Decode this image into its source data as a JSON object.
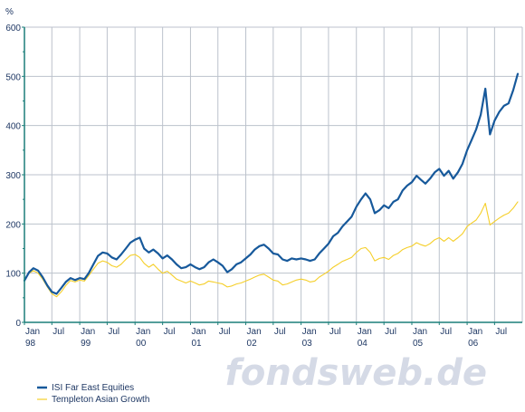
{
  "chart_data": {
    "type": "line",
    "ylabel": "%",
    "ylim": [
      0,
      600
    ],
    "yticks": [
      0,
      100,
      200,
      300,
      400,
      500,
      600
    ],
    "xlim": [
      "1998-01-01",
      "2006-12-31"
    ],
    "xticks": [
      {
        "date": "1998-01-01",
        "label": "Jan",
        "sub": "98"
      },
      {
        "date": "1998-07-01",
        "label": "Jul",
        "sub": ""
      },
      {
        "date": "1999-01-01",
        "label": "Jan",
        "sub": "99"
      },
      {
        "date": "1999-07-01",
        "label": "Jul",
        "sub": ""
      },
      {
        "date": "2000-01-01",
        "label": "Jan",
        "sub": "00"
      },
      {
        "date": "2000-07-01",
        "label": "Jul",
        "sub": ""
      },
      {
        "date": "2001-01-01",
        "label": "Jan",
        "sub": "01"
      },
      {
        "date": "2001-07-01",
        "label": "Jul",
        "sub": ""
      },
      {
        "date": "2002-01-01",
        "label": "Jan",
        "sub": "02"
      },
      {
        "date": "2002-07-01",
        "label": "Jul",
        "sub": ""
      },
      {
        "date": "2003-01-01",
        "label": "Jan",
        "sub": "03"
      },
      {
        "date": "2003-07-01",
        "label": "Jul",
        "sub": ""
      },
      {
        "date": "2004-01-01",
        "label": "Jan",
        "sub": "04"
      },
      {
        "date": "2004-07-01",
        "label": "Jul",
        "sub": ""
      },
      {
        "date": "2005-01-01",
        "label": "Jan",
        "sub": "05"
      },
      {
        "date": "2005-07-01",
        "label": "Jul",
        "sub": ""
      },
      {
        "date": "2006-01-01",
        "label": "Jan",
        "sub": "06"
      },
      {
        "date": "2006-07-01",
        "label": "Jul",
        "sub": ""
      }
    ],
    "grid": true,
    "legend_position": "bottom-left",
    "series": [
      {
        "name": "ISI Far East Equities",
        "color": "#17599b",
        "points": [
          [
            "1998-01-01",
            85
          ],
          [
            "1998-02-01",
            102
          ],
          [
            "1998-03-01",
            110
          ],
          [
            "1998-04-01",
            105
          ],
          [
            "1998-05-01",
            92
          ],
          [
            "1998-06-01",
            75
          ],
          [
            "1998-07-01",
            62
          ],
          [
            "1998-08-01",
            58
          ],
          [
            "1998-09-01",
            70
          ],
          [
            "1998-10-01",
            82
          ],
          [
            "1998-11-01",
            90
          ],
          [
            "1998-12-01",
            86
          ],
          [
            "1999-01-01",
            90
          ],
          [
            "1999-02-01",
            88
          ],
          [
            "1999-03-01",
            100
          ],
          [
            "1999-04-01",
            118
          ],
          [
            "1999-05-01",
            135
          ],
          [
            "1999-06-01",
            142
          ],
          [
            "1999-07-01",
            140
          ],
          [
            "1999-08-01",
            132
          ],
          [
            "1999-09-01",
            128
          ],
          [
            "1999-10-01",
            138
          ],
          [
            "1999-11-01",
            150
          ],
          [
            "1999-12-01",
            162
          ],
          [
            "2000-01-01",
            168
          ],
          [
            "2000-02-01",
            172
          ],
          [
            "2000-03-01",
            150
          ],
          [
            "2000-04-01",
            142
          ],
          [
            "2000-05-01",
            148
          ],
          [
            "2000-06-01",
            140
          ],
          [
            "2000-07-01",
            130
          ],
          [
            "2000-08-01",
            136
          ],
          [
            "2000-09-01",
            128
          ],
          [
            "2000-10-01",
            118
          ],
          [
            "2000-11-01",
            110
          ],
          [
            "2000-12-01",
            112
          ],
          [
            "2001-01-01",
            118
          ],
          [
            "2001-02-01",
            112
          ],
          [
            "2001-03-01",
            108
          ],
          [
            "2001-04-01",
            112
          ],
          [
            "2001-05-01",
            122
          ],
          [
            "2001-06-01",
            128
          ],
          [
            "2001-07-01",
            122
          ],
          [
            "2001-08-01",
            115
          ],
          [
            "2001-09-01",
            102
          ],
          [
            "2001-10-01",
            108
          ],
          [
            "2001-11-01",
            118
          ],
          [
            "2001-12-01",
            122
          ],
          [
            "2002-01-01",
            130
          ],
          [
            "2002-02-01",
            138
          ],
          [
            "2002-03-01",
            148
          ],
          [
            "2002-04-01",
            155
          ],
          [
            "2002-05-01",
            158
          ],
          [
            "2002-06-01",
            150
          ],
          [
            "2002-07-01",
            140
          ],
          [
            "2002-08-01",
            138
          ],
          [
            "2002-09-01",
            128
          ],
          [
            "2002-10-01",
            125
          ],
          [
            "2002-11-01",
            130
          ],
          [
            "2002-12-01",
            128
          ],
          [
            "2003-01-01",
            130
          ],
          [
            "2003-02-01",
            128
          ],
          [
            "2003-03-01",
            125
          ],
          [
            "2003-04-01",
            128
          ],
          [
            "2003-05-01",
            140
          ],
          [
            "2003-06-01",
            150
          ],
          [
            "2003-07-01",
            160
          ],
          [
            "2003-08-01",
            175
          ],
          [
            "2003-09-01",
            182
          ],
          [
            "2003-10-01",
            195
          ],
          [
            "2003-11-01",
            205
          ],
          [
            "2003-12-01",
            215
          ],
          [
            "2004-01-01",
            235
          ],
          [
            "2004-02-01",
            250
          ],
          [
            "2004-03-01",
            262
          ],
          [
            "2004-04-01",
            250
          ],
          [
            "2004-05-01",
            222
          ],
          [
            "2004-06-01",
            228
          ],
          [
            "2004-07-01",
            238
          ],
          [
            "2004-08-01",
            232
          ],
          [
            "2004-09-01",
            245
          ],
          [
            "2004-10-01",
            250
          ],
          [
            "2004-11-01",
            268
          ],
          [
            "2004-12-01",
            278
          ],
          [
            "2005-01-01",
            285
          ],
          [
            "2005-02-01",
            298
          ],
          [
            "2005-03-01",
            290
          ],
          [
            "2005-04-01",
            282
          ],
          [
            "2005-05-01",
            292
          ],
          [
            "2005-06-01",
            305
          ],
          [
            "2005-07-01",
            312
          ],
          [
            "2005-08-01",
            298
          ],
          [
            "2005-09-01",
            308
          ],
          [
            "2005-10-01",
            292
          ],
          [
            "2005-11-01",
            305
          ],
          [
            "2005-12-01",
            322
          ],
          [
            "2006-01-01",
            350
          ],
          [
            "2006-02-01",
            372
          ],
          [
            "2006-03-01",
            392
          ],
          [
            "2006-04-01",
            422
          ],
          [
            "2006-05-01",
            475
          ],
          [
            "2006-06-01",
            382
          ],
          [
            "2006-07-01",
            410
          ],
          [
            "2006-08-01",
            428
          ],
          [
            "2006-09-01",
            440
          ],
          [
            "2006-10-01",
            445
          ],
          [
            "2006-11-01",
            472
          ],
          [
            "2006-12-01",
            505
          ]
        ]
      },
      {
        "name": "Templeton Asian Growth",
        "color": "#f5cf2a",
        "points": [
          [
            "1998-01-01",
            88
          ],
          [
            "1998-02-01",
            100
          ],
          [
            "1998-03-01",
            105
          ],
          [
            "1998-04-01",
            100
          ],
          [
            "1998-05-01",
            88
          ],
          [
            "1998-06-01",
            72
          ],
          [
            "1998-07-01",
            58
          ],
          [
            "1998-08-01",
            52
          ],
          [
            "1998-09-01",
            62
          ],
          [
            "1998-10-01",
            75
          ],
          [
            "1998-11-01",
            85
          ],
          [
            "1998-12-01",
            82
          ],
          [
            "1999-01-01",
            86
          ],
          [
            "1999-02-01",
            84
          ],
          [
            "1999-03-01",
            95
          ],
          [
            "1999-04-01",
            108
          ],
          [
            "1999-05-01",
            120
          ],
          [
            "1999-06-01",
            125
          ],
          [
            "1999-07-01",
            122
          ],
          [
            "1999-08-01",
            115
          ],
          [
            "1999-09-01",
            112
          ],
          [
            "1999-10-01",
            118
          ],
          [
            "1999-11-01",
            128
          ],
          [
            "1999-12-01",
            136
          ],
          [
            "2000-01-01",
            138
          ],
          [
            "2000-02-01",
            132
          ],
          [
            "2000-03-01",
            120
          ],
          [
            "2000-04-01",
            112
          ],
          [
            "2000-05-01",
            118
          ],
          [
            "2000-06-01",
            108
          ],
          [
            "2000-07-01",
            100
          ],
          [
            "2000-08-01",
            104
          ],
          [
            "2000-09-01",
            96
          ],
          [
            "2000-10-01",
            88
          ],
          [
            "2000-11-01",
            84
          ],
          [
            "2000-12-01",
            80
          ],
          [
            "2001-01-01",
            84
          ],
          [
            "2001-02-01",
            80
          ],
          [
            "2001-03-01",
            76
          ],
          [
            "2001-04-01",
            78
          ],
          [
            "2001-05-01",
            84
          ],
          [
            "2001-06-01",
            82
          ],
          [
            "2001-07-01",
            80
          ],
          [
            "2001-08-01",
            78
          ],
          [
            "2001-09-01",
            72
          ],
          [
            "2001-10-01",
            74
          ],
          [
            "2001-11-01",
            78
          ],
          [
            "2001-12-01",
            80
          ],
          [
            "2002-01-01",
            84
          ],
          [
            "2002-02-01",
            88
          ],
          [
            "2002-03-01",
            92
          ],
          [
            "2002-04-01",
            96
          ],
          [
            "2002-05-01",
            98
          ],
          [
            "2002-06-01",
            92
          ],
          [
            "2002-07-01",
            86
          ],
          [
            "2002-08-01",
            84
          ],
          [
            "2002-09-01",
            76
          ],
          [
            "2002-10-01",
            78
          ],
          [
            "2002-11-01",
            82
          ],
          [
            "2002-12-01",
            86
          ],
          [
            "2003-01-01",
            88
          ],
          [
            "2003-02-01",
            86
          ],
          [
            "2003-03-01",
            82
          ],
          [
            "2003-04-01",
            84
          ],
          [
            "2003-05-01",
            92
          ],
          [
            "2003-06-01",
            98
          ],
          [
            "2003-07-01",
            104
          ],
          [
            "2003-08-01",
            112
          ],
          [
            "2003-09-01",
            118
          ],
          [
            "2003-10-01",
            124
          ],
          [
            "2003-11-01",
            128
          ],
          [
            "2003-12-01",
            132
          ],
          [
            "2004-01-01",
            142
          ],
          [
            "2004-02-01",
            150
          ],
          [
            "2004-03-01",
            152
          ],
          [
            "2004-04-01",
            142
          ],
          [
            "2004-05-01",
            125
          ],
          [
            "2004-06-01",
            130
          ],
          [
            "2004-07-01",
            132
          ],
          [
            "2004-08-01",
            128
          ],
          [
            "2004-09-01",
            136
          ],
          [
            "2004-10-01",
            140
          ],
          [
            "2004-11-01",
            148
          ],
          [
            "2004-12-01",
            152
          ],
          [
            "2005-01-01",
            155
          ],
          [
            "2005-02-01",
            162
          ],
          [
            "2005-03-01",
            158
          ],
          [
            "2005-04-01",
            155
          ],
          [
            "2005-05-01",
            160
          ],
          [
            "2005-06-01",
            168
          ],
          [
            "2005-07-01",
            172
          ],
          [
            "2005-08-01",
            165
          ],
          [
            "2005-09-01",
            172
          ],
          [
            "2005-10-01",
            165
          ],
          [
            "2005-11-01",
            172
          ],
          [
            "2005-12-01",
            180
          ],
          [
            "2006-01-01",
            195
          ],
          [
            "2006-02-01",
            202
          ],
          [
            "2006-03-01",
            208
          ],
          [
            "2006-04-01",
            222
          ],
          [
            "2006-05-01",
            242
          ],
          [
            "2006-06-01",
            198
          ],
          [
            "2006-07-01",
            205
          ],
          [
            "2006-08-01",
            212
          ],
          [
            "2006-09-01",
            218
          ],
          [
            "2006-10-01",
            222
          ],
          [
            "2006-11-01",
            232
          ],
          [
            "2006-12-01",
            245
          ]
        ]
      }
    ]
  },
  "watermark": "fondsweb.de",
  "colors": {
    "axis": "#1b7f7a",
    "grid": "#bcc2cc",
    "text": "#1f3864",
    "watermark": "#d5dae6"
  }
}
